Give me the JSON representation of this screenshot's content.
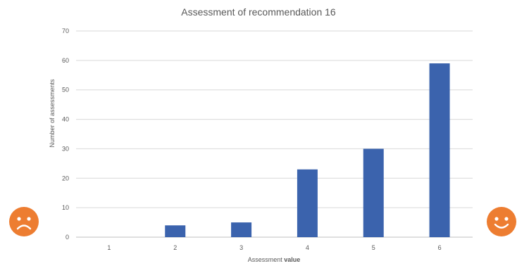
{
  "chart_data": {
    "type": "bar",
    "title": "Assessment of recommendation 16",
    "xlabel_prefix": "Assessment",
    "xlabel_bold": "value",
    "ylabel": "Number of assessments",
    "categories": [
      "1",
      "2",
      "3",
      "4",
      "5",
      "6"
    ],
    "values": [
      0,
      4,
      5,
      23,
      30,
      59
    ],
    "ylim": [
      0,
      70
    ],
    "yticks": [
      0,
      10,
      20,
      30,
      40,
      50,
      60,
      70
    ],
    "grid": true,
    "bar_color": "#3b63ad"
  },
  "decorations": {
    "left_face": "sad-face-icon",
    "right_face": "happy-face-icon",
    "face_color": "#ed7d31"
  }
}
